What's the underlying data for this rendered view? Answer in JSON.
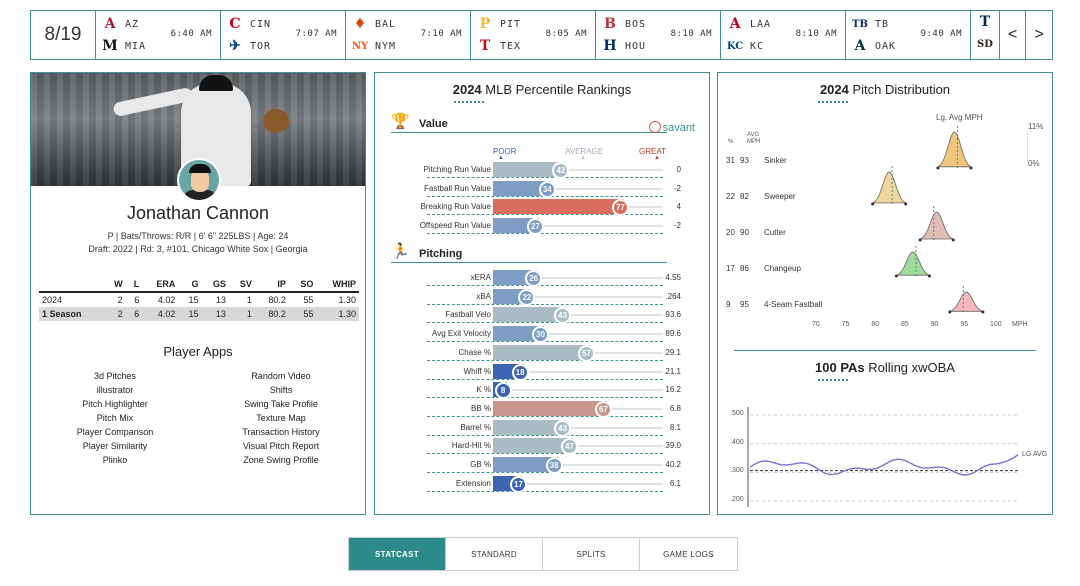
{
  "scoreboard": {
    "date": "8/19",
    "games": [
      {
        "away": "AZ",
        "home": "MIA",
        "time": "6:40 AM",
        "away_logo": "A",
        "home_logo": "M",
        "away_color": "#a71930",
        "home_color": "#111111"
      },
      {
        "away": "CIN",
        "home": "TOR",
        "time": "7:07 AM",
        "away_logo": "C",
        "home_logo": "✈",
        "away_color": "#c6011f",
        "home_color": "#134a8e"
      },
      {
        "away": "BAL",
        "home": "NYM",
        "time": "7:10 AM",
        "away_logo": "♦",
        "home_logo": "NY",
        "away_color": "#df4601",
        "home_color": "#ff5910"
      },
      {
        "away": "PIT",
        "home": "TEX",
        "time": "8:05 AM",
        "away_logo": "P",
        "home_logo": "T",
        "away_color": "#fdb827",
        "home_color": "#c0111f"
      },
      {
        "away": "BOS",
        "home": "HOU",
        "time": "8:10 AM",
        "away_logo": "B",
        "home_logo": "H",
        "away_color": "#bd3039",
        "home_color": "#002d62"
      },
      {
        "away": "LAA",
        "home": "KC",
        "time": "8:10 AM",
        "away_logo": "A",
        "home_logo": "KC",
        "away_color": "#ba0021",
        "home_color": "#004687"
      },
      {
        "away": "TB",
        "home": "OAK",
        "time": "9:40 AM",
        "away_logo": "TB",
        "home_logo": "A",
        "away_color": "#092c5c",
        "home_color": "#003831"
      }
    ],
    "extra_logos": [
      {
        "logo": "T",
        "color": "#002b5c"
      },
      {
        "logo": "SD",
        "color": "#2f241d"
      }
    ],
    "prev_label": "<",
    "next_label": ">"
  },
  "player": {
    "name": "Jonathan Cannon",
    "bio_line1": "P | Bats/Throws: R/R | 6' 6\" 225LBS | Age: 24",
    "bio_line2": "Draft: 2022 | Rd: 3, #101, Chicago White Sox | Georgia",
    "stats_headers": [
      "",
      "W",
      "L",
      "ERA",
      "G",
      "GS",
      "SV",
      "IP",
      "SO",
      "WHIP"
    ],
    "stats_rows": [
      [
        "2024",
        "2",
        "6",
        "4.02",
        "15",
        "13",
        "1",
        "80.2",
        "55",
        "1.30"
      ],
      [
        "1 Season",
        "2",
        "6",
        "4.02",
        "15",
        "13",
        "1",
        "80.2",
        "55",
        "1.30"
      ]
    ],
    "apps_title": "Player Apps",
    "apps_left": [
      "3d Pitches",
      "illustrator",
      "Pitch Highlighter",
      "Pitch Mix",
      "Player Comparison",
      "Player Similarity",
      "Plinko"
    ],
    "apps_right": [
      "Random Video",
      "Shifts",
      "Swing Take Profile",
      "Texture Map",
      "Transaction History",
      "Visual Pitch Report",
      "Zone Swing Profile"
    ]
  },
  "percentiles": {
    "title_year": "2024",
    "title_rest": "MLB Percentile Rankings",
    "value_header": "Value",
    "pitching_header": "Pitching",
    "savant_label": "savant",
    "scale": {
      "poor": "POOR",
      "average": "AVERAGE",
      "great": "GREAT"
    },
    "value_rows": [
      {
        "label": "Pitching Run Value",
        "pct": 42,
        "value": "0"
      },
      {
        "label": "Fastball Run Value",
        "pct": 34,
        "value": "-2"
      },
      {
        "label": "Breaking Run Value",
        "pct": 77,
        "value": "4"
      },
      {
        "label": "Offspeed Run Value",
        "pct": 27,
        "value": "-2"
      }
    ],
    "pitching_rows": [
      {
        "label": "xERA",
        "pct": 26,
        "value": "4.55"
      },
      {
        "label": "xBA",
        "pct": 22,
        "value": ".264"
      },
      {
        "label": "Fastball Velo",
        "pct": 43,
        "value": "93.6"
      },
      {
        "label": "Avg Exit Velocity",
        "pct": 30,
        "value": "89.6"
      },
      {
        "label": "Chase %",
        "pct": 57,
        "value": "29.1"
      },
      {
        "label": "Whiff %",
        "pct": 18,
        "value": "21.1"
      },
      {
        "label": "K %",
        "pct": 8,
        "value": "16.2"
      },
      {
        "label": "BB %",
        "pct": 67,
        "value": "6.8"
      },
      {
        "label": "Barrel %",
        "pct": 43,
        "value": "8.1"
      },
      {
        "label": "Hard-Hit %",
        "pct": 47,
        "value": "39.0"
      },
      {
        "label": "GB %",
        "pct": 38,
        "value": "40.2"
      },
      {
        "label": "Extension",
        "pct": 17,
        "value": "6.1"
      }
    ]
  },
  "pitch_distribution": {
    "title_year": "2024",
    "title_rest": "Pitch Distribution",
    "legend_label": "Lg. Avg MPH",
    "col_pct": "%",
    "col_avg": "AVG",
    "col_mph": "MPH",
    "scale_top": "11%",
    "scale_bottom": "0%",
    "x_ticks": [
      "70",
      "75",
      "80",
      "85",
      "90",
      "95",
      "100"
    ],
    "x_unit": "MPH",
    "pitches": [
      {
        "name": "Sinker",
        "pct": "31",
        "mph": 93,
        "lg_avg": 93.5,
        "color": "#f2c57c"
      },
      {
        "name": "Sweeper",
        "pct": "22",
        "mph": 82,
        "lg_avg": 82.5,
        "color": "#f1d59a"
      },
      {
        "name": "Cutter",
        "pct": "20",
        "mph": 90,
        "lg_avg": 89.5,
        "color": "#e0bdb6"
      },
      {
        "name": "Changeup",
        "pct": "17",
        "mph": 86,
        "lg_avg": 86.5,
        "color": "#9ddc9a"
      },
      {
        "name": "4-Seam Fastball",
        "pct": "9",
        "mph": 95,
        "lg_avg": 94.5,
        "color": "#f5b8c0"
      }
    ]
  },
  "rolling": {
    "title_bold": "100 PAs",
    "title_rest": "Rolling xwOBA",
    "y_ticks": [
      ".500",
      ".400",
      ".300",
      ".200"
    ],
    "lg_avg_label": "LG AVG",
    "lg_avg_value": 0.306,
    "line_color": "#7b6fd6"
  },
  "tabs": [
    {
      "label": "STATCAST",
      "active": true
    },
    {
      "label": "STANDARD",
      "active": false
    },
    {
      "label": "SPLITS",
      "active": false
    },
    {
      "label": "GAME LOGS",
      "active": false
    }
  ],
  "colors": {
    "accent": "#3f8f8f",
    "bar_blue": "#7d9dc5",
    "bar_dark_blue": "#3d63b3",
    "bar_red": "#d96e5f",
    "bar_grey": "#a9bcc4",
    "bar_rose": "#c9958d"
  }
}
